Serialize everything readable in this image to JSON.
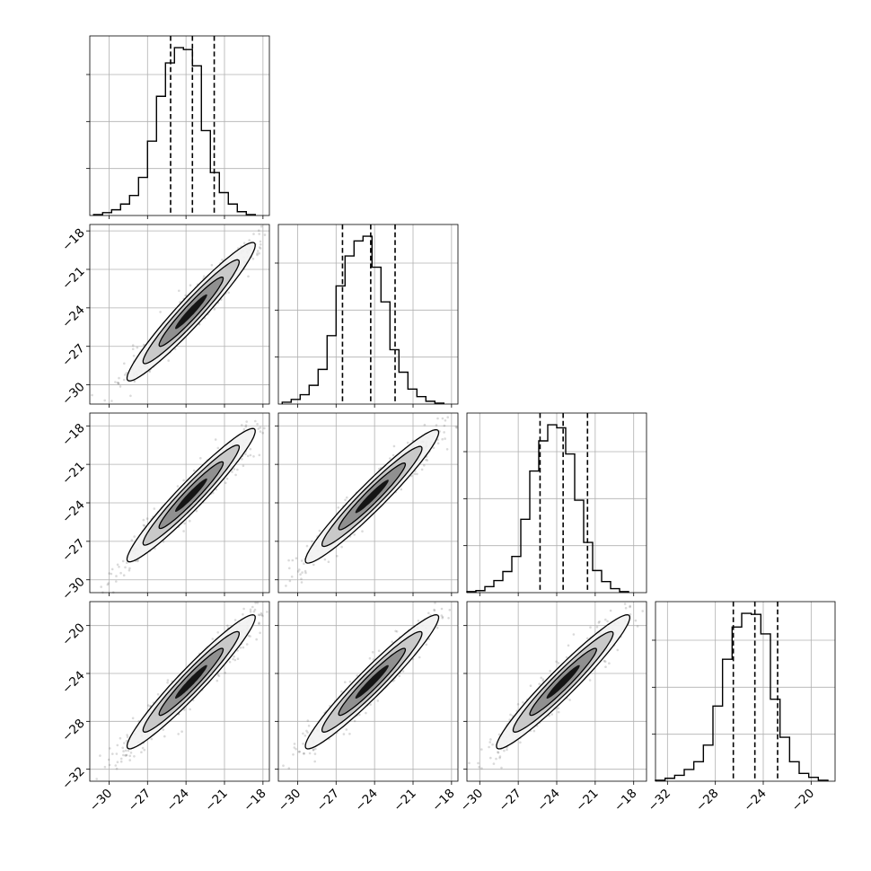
{
  "chart_data": {
    "type": "corner",
    "grid": true,
    "colors": {
      "line": "#000000",
      "grid": "#b0b0b0",
      "points": "#555555",
      "density_levels": [
        "#f2f2f2",
        "#c4c4c4",
        "#8a8a8a",
        "#000000"
      ]
    },
    "parameters": [
      {
        "range": [
          -31.5,
          -17.5
        ],
        "ticks": [
          -30,
          -27,
          -24,
          -21,
          -18
        ],
        "tick_labels": [
          "−30",
          "−27",
          "−24",
          "−21",
          "−18"
        ]
      },
      {
        "range": [
          -31.5,
          -17.5
        ],
        "ticks": [
          -30,
          -27,
          -24,
          -21,
          -18
        ],
        "tick_labels": [
          "−30",
          "−27",
          "−24",
          "−21",
          "−18"
        ]
      },
      {
        "range": [
          -31.0,
          -17.0
        ],
        "ticks": [
          -30,
          -27,
          -24,
          -21,
          -18
        ],
        "tick_labels": [
          "−30",
          "−27",
          "−24",
          "−21",
          "−18"
        ]
      },
      {
        "range": [
          -33.0,
          -18.0
        ],
        "ticks": [
          -32,
          -28,
          -24,
          -20
        ],
        "tick_labels": [
          "−32",
          "−28",
          "−24",
          "−20"
        ]
      }
    ],
    "marginals": [
      {
        "quantiles": [
          -25.2,
          -23.5,
          -21.8
        ],
        "bin_start": -31.2,
        "bin_width": 0.7,
        "counts": [
          1,
          3,
          6,
          12,
          21,
          40,
          78,
          125,
          160,
          176,
          174,
          157,
          89,
          45,
          24,
          12,
          4,
          1
        ]
      },
      {
        "quantiles": [
          -26.5,
          -24.3,
          -22.4
        ],
        "bin_start": -31.2,
        "bin_width": 0.7,
        "counts": [
          2,
          5,
          10,
          20,
          37,
          73,
          126,
          158,
          174,
          179,
          146,
          109,
          58,
          34,
          16,
          8,
          3,
          1
        ]
      },
      {
        "quantiles": [
          -25.3,
          -23.5,
          -21.6
        ],
        "bin_start": -31.0,
        "bin_width": 0.7,
        "counts": [
          1,
          2,
          6,
          12,
          21,
          36,
          73,
          121,
          151,
          167,
          164,
          138,
          92,
          50,
          22,
          11,
          4,
          1
        ]
      },
      {
        "quantiles": [
          -26.5,
          -24.7,
          -22.8
        ],
        "bin_start": -33.0,
        "bin_width": 0.8,
        "counts": [
          1,
          3,
          6,
          12,
          20,
          37,
          77,
          125,
          158,
          172,
          171,
          151,
          84,
          45,
          20,
          8,
          4,
          1
        ]
      }
    ],
    "joints": [
      {
        "x": 0,
        "y": 1,
        "mean": [
          -23.6,
          -24.3
        ],
        "sd": [
          2.5,
          2.7
        ],
        "rho": 0.96
      },
      {
        "x": 0,
        "y": 2,
        "mean": [
          -23.6,
          -23.4
        ],
        "sd": [
          2.5,
          2.6
        ],
        "rho": 0.96
      },
      {
        "x": 1,
        "y": 2,
        "mean": [
          -24.2,
          -23.5
        ],
        "sd": [
          2.6,
          2.6
        ],
        "rho": 0.96
      },
      {
        "x": 0,
        "y": 3,
        "mean": [
          -23.6,
          -24.7
        ],
        "sd": [
          2.5,
          2.8
        ],
        "rho": 0.96
      },
      {
        "x": 1,
        "y": 3,
        "mean": [
          -24.2,
          -24.7
        ],
        "sd": [
          2.6,
          2.8
        ],
        "rho": 0.96
      },
      {
        "x": 2,
        "y": 3,
        "mean": [
          -23.5,
          -24.7
        ],
        "sd": [
          2.6,
          2.8
        ],
        "rho": 0.96
      }
    ],
    "contour_levels_sigma": [
      0.5,
      1.0,
      1.5,
      2.0
    ]
  }
}
